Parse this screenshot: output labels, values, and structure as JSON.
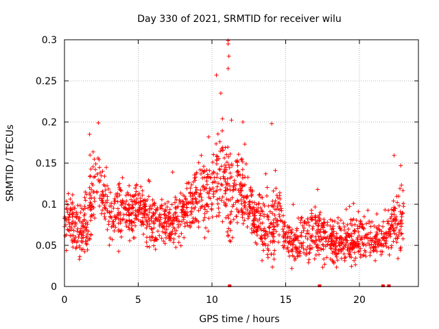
{
  "chart_data": {
    "type": "scatter",
    "title": "Day 330 of 2021, SRMTID for receiver wilu",
    "xlabel": "GPS time / hours",
    "ylabel": "SRMTID / TECUs",
    "xlim": [
      0,
      24
    ],
    "ylim": [
      0,
      0.3
    ],
    "xticks": [
      "0",
      "5",
      "10",
      "15",
      "20"
    ],
    "yticks": [
      "0",
      "0.05",
      "0.1",
      "0.15",
      "0.2",
      "0.25",
      "0.3"
    ],
    "grid": true,
    "marker": "plus",
    "color": "#ff0000",
    "series": [
      {
        "name": "SRMTID",
        "envelope": [
          {
            "x": 0.0,
            "mean": 0.085,
            "spread": 0.03
          },
          {
            "x": 0.5,
            "mean": 0.08,
            "spread": 0.035
          },
          {
            "x": 1.0,
            "mean": 0.065,
            "spread": 0.035
          },
          {
            "x": 1.5,
            "mean": 0.08,
            "spread": 0.035
          },
          {
            "x": 2.0,
            "mean": 0.115,
            "spread": 0.035
          },
          {
            "x": 2.5,
            "mean": 0.12,
            "spread": 0.03
          },
          {
            "x": 3.0,
            "mean": 0.085,
            "spread": 0.03
          },
          {
            "x": 4.0,
            "mean": 0.09,
            "spread": 0.03
          },
          {
            "x": 5.0,
            "mean": 0.095,
            "spread": 0.025
          },
          {
            "x": 6.0,
            "mean": 0.08,
            "spread": 0.03
          },
          {
            "x": 7.0,
            "mean": 0.075,
            "spread": 0.025
          },
          {
            "x": 8.0,
            "mean": 0.085,
            "spread": 0.025
          },
          {
            "x": 9.0,
            "mean": 0.115,
            "spread": 0.035
          },
          {
            "x": 10.0,
            "mean": 0.12,
            "spread": 0.04
          },
          {
            "x": 10.7,
            "mean": 0.14,
            "spread": 0.05
          },
          {
            "x": 11.2,
            "mean": 0.11,
            "spread": 0.05
          },
          {
            "x": 12.0,
            "mean": 0.12,
            "spread": 0.045
          },
          {
            "x": 13.0,
            "mean": 0.08,
            "spread": 0.025
          },
          {
            "x": 14.0,
            "mean": 0.065,
            "spread": 0.04
          },
          {
            "x": 14.5,
            "mean": 0.09,
            "spread": 0.04
          },
          {
            "x": 15.0,
            "mean": 0.055,
            "spread": 0.02
          },
          {
            "x": 16.0,
            "mean": 0.055,
            "spread": 0.025
          },
          {
            "x": 17.0,
            "mean": 0.065,
            "spread": 0.03
          },
          {
            "x": 18.0,
            "mean": 0.06,
            "spread": 0.025
          },
          {
            "x": 19.0,
            "mean": 0.055,
            "spread": 0.02
          },
          {
            "x": 20.0,
            "mean": 0.06,
            "spread": 0.025
          },
          {
            "x": 21.0,
            "mean": 0.055,
            "spread": 0.02
          },
          {
            "x": 22.0,
            "mean": 0.065,
            "spread": 0.03
          },
          {
            "x": 23.0,
            "mean": 0.085,
            "spread": 0.035
          }
        ],
        "x_range": [
          0.0,
          23.0
        ],
        "approx_count": 1800,
        "peaks": [
          {
            "x": 2.3,
            "y": 0.199
          },
          {
            "x": 10.3,
            "y": 0.257
          },
          {
            "x": 10.6,
            "y": 0.235
          },
          {
            "x": 11.1,
            "y": 0.299
          },
          {
            "x": 11.1,
            "y": 0.295
          },
          {
            "x": 11.15,
            "y": 0.28
          },
          {
            "x": 11.1,
            "y": 0.265
          },
          {
            "x": 12.1,
            "y": 0.2
          },
          {
            "x": 14.05,
            "y": 0.198
          },
          {
            "x": 1.7,
            "y": 0.185
          },
          {
            "x": 22.8,
            "y": 0.147
          }
        ],
        "zero_values_x": [
          11.2,
          17.3,
          21.6,
          22.0
        ]
      }
    ]
  }
}
